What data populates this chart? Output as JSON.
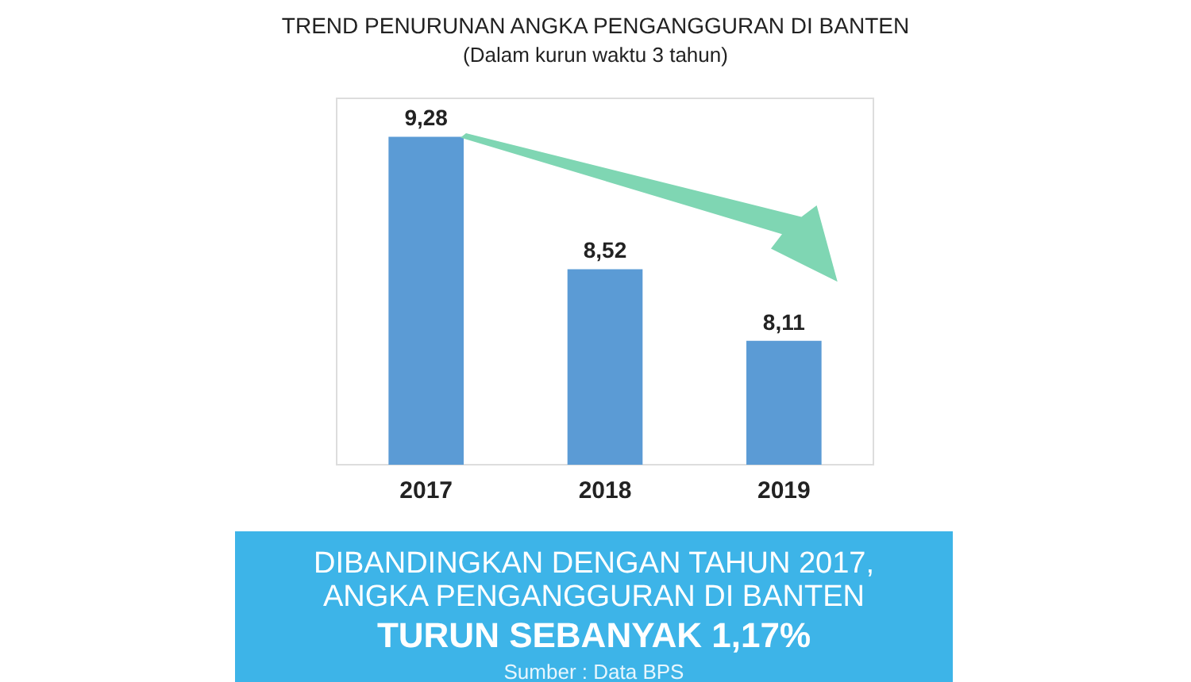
{
  "chart_data": {
    "type": "bar",
    "title": "TREND PENURUNAN ANGKA PENGANGGURAN DI BANTEN",
    "subtitle": "(Dalam kurun waktu 3 tahun)",
    "categories": [
      "2017",
      "2018",
      "2019"
    ],
    "values": [
      9.28,
      8.52,
      8.11
    ],
    "value_labels": [
      "9,28",
      "8,52",
      "8,11"
    ],
    "color": "#5b9bd5",
    "ylim": [
      7.4,
      9.5
    ],
    "tick_labels": "x",
    "grid": false,
    "annotations": [
      "DIBANDINGKAN DENGAN TAHUN 2017,",
      "ANGKA PENGANGGURAN DI BANTEN",
      "TURUN SEBANYAK 1,17%",
      "Sumber : Data BPS"
    ]
  }
}
